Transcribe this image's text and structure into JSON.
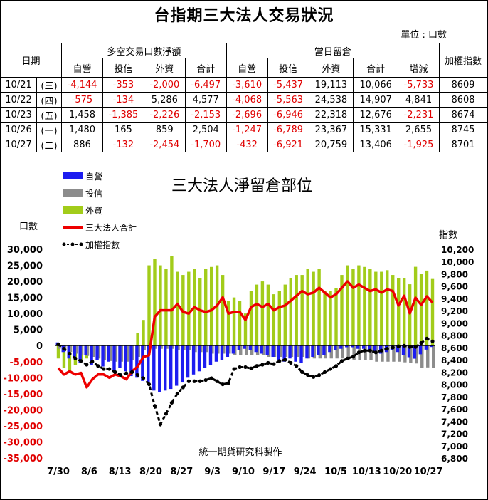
{
  "title": "台指期三大法人交易狀況",
  "unit": "單位 : 口數",
  "table": {
    "date_header": "日期",
    "group1": "多空交易口數淨額",
    "group2": "當日留倉",
    "index_header": "加權指數",
    "cols1": [
      "自營",
      "投信",
      "外資",
      "合計"
    ],
    "cols2": [
      "自營",
      "投信",
      "外資",
      "合計",
      "增減"
    ],
    "rows": [
      {
        "date": "10/21",
        "wd": "(三)",
        "vals": [
          "-4,144",
          "-353",
          "-2,000",
          "-6,497",
          "-3,610",
          "-5,437",
          "19,113",
          "10,066",
          "-5,733"
        ],
        "idx": "8609"
      },
      {
        "date": "10/22",
        "wd": "(四)",
        "vals": [
          "-575",
          "-134",
          "5,286",
          "4,577",
          "-4,068",
          "-5,563",
          "24,538",
          "14,907",
          "4,841"
        ],
        "idx": "8608"
      },
      {
        "date": "10/23",
        "wd": "(五)",
        "vals": [
          "1,458",
          "-1,385",
          "-2,226",
          "-2,153",
          "-2,696",
          "-6,946",
          "22,318",
          "12,676",
          "-2,231"
        ],
        "idx": "8674"
      },
      {
        "date": "10/26",
        "wd": "(一)",
        "vals": [
          "1,480",
          "165",
          "859",
          "2,504",
          "-1,247",
          "-6,789",
          "23,367",
          "15,331",
          "2,655"
        ],
        "idx": "8745"
      },
      {
        "date": "10/27",
        "wd": "(二)",
        "vals": [
          "886",
          "-132",
          "-2,454",
          "-1,700",
          "-432",
          "-6,921",
          "20,759",
          "13,406",
          "-1,925"
        ],
        "idx": "8701"
      }
    ]
  },
  "chart_data": {
    "type": "bar",
    "title": "三大法人淨留倉部位",
    "ylabel": "口數",
    "y2label": "指數",
    "ylim": [
      -35000,
      30000
    ],
    "y2lim": [
      6800,
      10200
    ],
    "yticks": [
      "30,000",
      "25,000",
      "20,000",
      "15,000",
      "10,000",
      "5,000",
      "0",
      "-5,000",
      "-10,000",
      "-15,000",
      "-20,000",
      "-25,000",
      "-30,000",
      "-35,000"
    ],
    "y2ticks": [
      "10,200",
      "10,000",
      "9,800",
      "9,600",
      "9,400",
      "9,200",
      "9,000",
      "8,800",
      "8,600",
      "8,400",
      "8,200",
      "8,000",
      "7,800",
      "7,600",
      "7,400",
      "7,200",
      "7,000",
      "6,800"
    ],
    "xticks": [
      "7/30",
      "8/6",
      "8/13",
      "8/20",
      "8/27",
      "9/3",
      "9/10",
      "9/17",
      "9/24",
      "10/5",
      "10/13",
      "10/20",
      "10/27"
    ],
    "legend": [
      "自營",
      "投信",
      "外資",
      "三大法人合計",
      "加權指數"
    ],
    "colors": {
      "dealer": "#1c1cf0",
      "trust": "#8c8c8c",
      "foreign": "#a2cc1a",
      "total": "#ee0000",
      "index": "#000000"
    },
    "note": "統一期貨研究科製作",
    "series": [
      {
        "name": "自營",
        "values": [
          1000,
          -2000,
          -4000,
          -3500,
          -5500,
          -3000,
          -6000,
          -4500,
          -6500,
          -5000,
          -7500,
          -7000,
          -8000,
          -9500,
          -10000,
          -11000,
          -12000,
          -14000,
          -14500,
          -14000,
          -13500,
          -12500,
          -11500,
          -10000,
          -9000,
          -8000,
          -7000,
          -6000,
          -5000,
          -4500,
          -3500,
          -2500,
          -1500,
          -1000,
          -1500,
          -2000,
          -2500,
          -3000,
          -3500,
          -4500,
          -5000,
          -4000,
          -5000,
          -5500,
          -4000,
          -3500,
          -3000,
          -3000,
          -2000,
          -1500,
          -1000,
          -500,
          -500,
          -1000,
          -1000,
          -1500,
          -2000,
          -2500,
          -2000,
          -1500,
          -2000,
          -3000,
          -3610,
          -4068,
          -2696,
          -1247,
          -432
        ]
      },
      {
        "name": "投信",
        "values": [
          -1000,
          -1500,
          -2000,
          -2500,
          -3000,
          -3200,
          -3500,
          -4000,
          -4500,
          -4800,
          -5000,
          -5000,
          -5000,
          -4500,
          -3500,
          -1500,
          -1000,
          -1000,
          -1000,
          -1000,
          -1000,
          -1500,
          -1500,
          -1500,
          -2000,
          -2000,
          -2000,
          -2500,
          -2500,
          -2500,
          -2500,
          -3000,
          -3000,
          -3000,
          -3000,
          -3000,
          -3000,
          -3500,
          -3500,
          -3500,
          -3500,
          -3500,
          -3500,
          -3500,
          -4000,
          -4000,
          -4000,
          -4000,
          -4000,
          -4000,
          -4000,
          -4500,
          -4500,
          -4500,
          -4500,
          -4500,
          -5000,
          -5000,
          -5000,
          -5000,
          -5000,
          -5200,
          -5437,
          -5563,
          -6946,
          -6789,
          -6921
        ]
      },
      {
        "name": "外資",
        "values": [
          -4000,
          -7000,
          -8000,
          -6000,
          -5000,
          -4000,
          -3000,
          -4000,
          -3000,
          -2000,
          -2500,
          -3000,
          -3000,
          -1000,
          4000,
          8000,
          25000,
          27000,
          25000,
          24000,
          28000,
          23000,
          22000,
          23000,
          24000,
          21000,
          24000,
          24500,
          25000,
          22000,
          14000,
          15000,
          14000,
          10000,
          17000,
          19000,
          20000,
          19000,
          16000,
          17000,
          19000,
          21000,
          22000,
          22000,
          24000,
          23000,
          24000,
          17000,
          17000,
          18000,
          22000,
          25000,
          24000,
          25000,
          24500,
          24000,
          23000,
          23000,
          23500,
          22000,
          21000,
          21000,
          19113,
          24538,
          22318,
          23367,
          20759
        ]
      },
      {
        "name": "三大法人合計",
        "values": [
          -7000,
          -9000,
          -8000,
          -9000,
          -8500,
          -13000,
          -10500,
          -9000,
          -9000,
          -10000,
          -9000,
          -9500,
          -10500,
          -8000,
          -6500,
          -3500,
          -3000,
          9000,
          11000,
          11000,
          11000,
          13000,
          10500,
          10000,
          12000,
          11000,
          10500,
          11000,
          12500,
          15000,
          10000,
          10500,
          10500,
          8000,
          12000,
          13000,
          12000,
          13000,
          11000,
          12000,
          12500,
          14000,
          15500,
          17000,
          16000,
          16500,
          18000,
          16500,
          15000,
          16000,
          18000,
          20000,
          18000,
          19000,
          18000,
          17000,
          17500,
          16500,
          17500,
          17000,
          12500,
          15500,
          10066,
          14907,
          12676,
          15331,
          13406
        ]
      },
      {
        "name": "加權指數",
        "values": [
          8650,
          8580,
          8500,
          8420,
          8380,
          8320,
          8370,
          8300,
          8250,
          8250,
          8200,
          8150,
          8180,
          8200,
          8150,
          8100,
          8000,
          7650,
          7350,
          7520,
          7700,
          7850,
          7950,
          8050,
          8050,
          8050,
          8070,
          8100,
          8050,
          8000,
          8020,
          8250,
          8280,
          8280,
          8260,
          8300,
          8320,
          8350,
          8330,
          8380,
          8400,
          8350,
          8300,
          8200,
          8150,
          8120,
          8150,
          8200,
          8250,
          8300,
          8380,
          8420,
          8450,
          8520,
          8550,
          8550,
          8520,
          8550,
          8580,
          8600,
          8620,
          8630,
          8609,
          8608,
          8674,
          8745,
          8701
        ]
      }
    ]
  }
}
